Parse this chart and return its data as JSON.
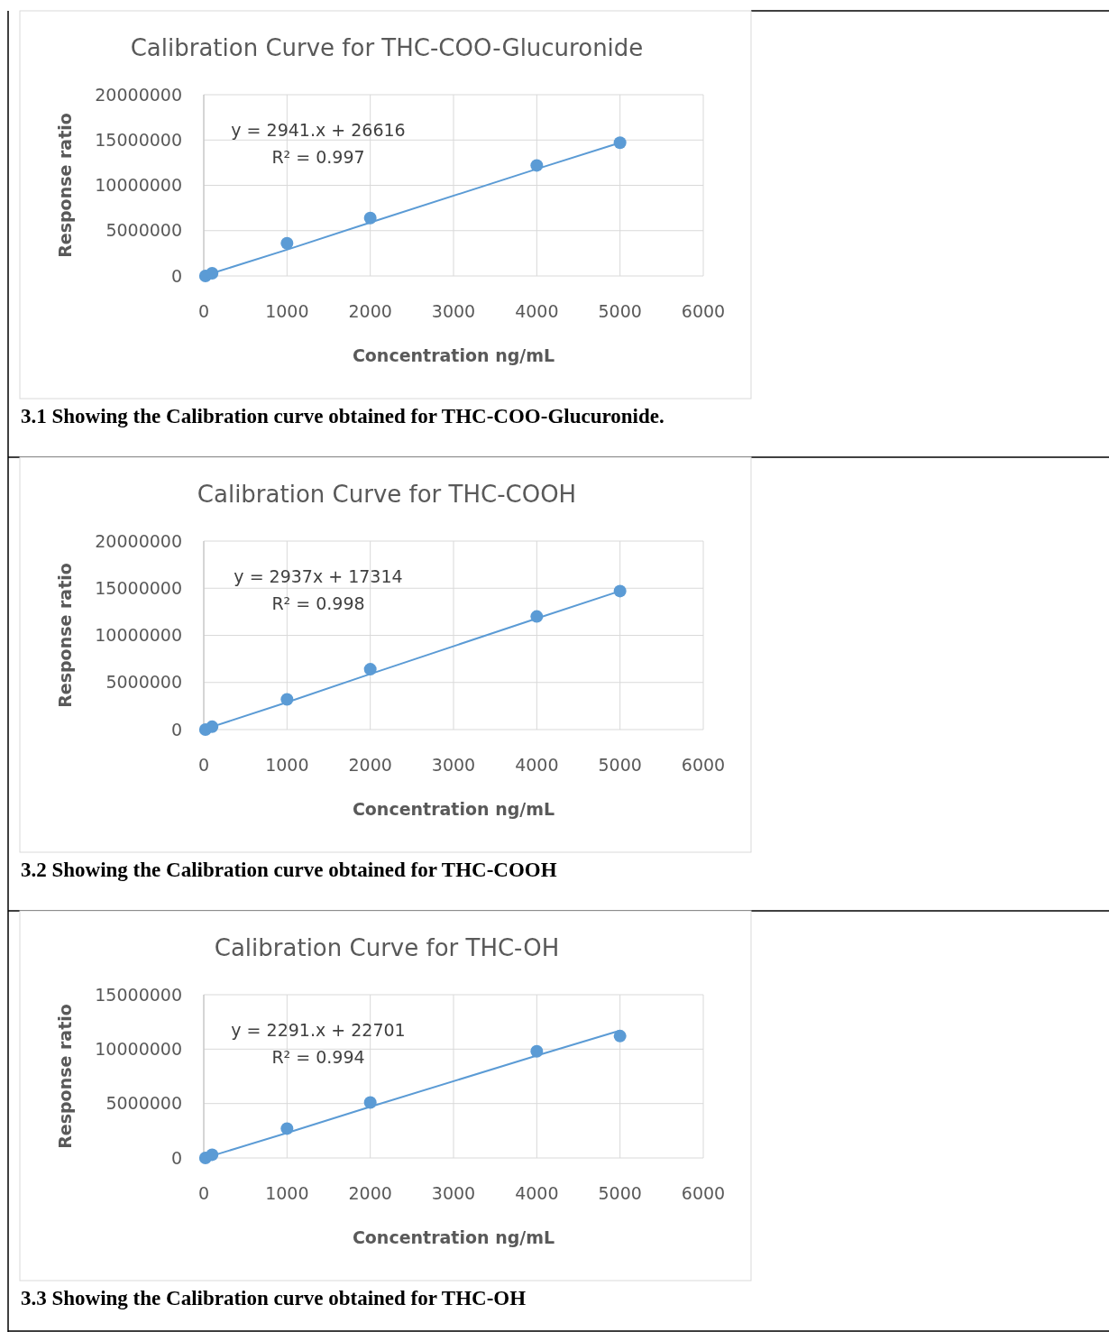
{
  "chart_data": [
    {
      "type": "scatter",
      "title": "Calibration Curve for THC-COO-Glucuronide",
      "xlabel": "Concentration ng/mL",
      "ylabel": "Response ratio",
      "x": [
        20,
        100,
        1000,
        2000,
        4000,
        5000
      ],
      "xlim": [
        0,
        6000
      ],
      "xticks": [
        0,
        1000,
        2000,
        3000,
        4000,
        5000,
        6000
      ],
      "ylim": [
        0,
        20000000
      ],
      "yticks": [
        0,
        5000000,
        10000000,
        15000000,
        20000000
      ],
      "grid": true,
      "series": [
        {
          "type": "scatter",
          "color": "#5b9bd5",
          "marker": "circle",
          "values": [
            0,
            300000,
            3600000,
            6400000,
            12200000,
            14700000
          ]
        },
        {
          "type": "line",
          "color": "#5b9bd5",
          "marker": "none",
          "values": [
            0,
            300000,
            2900000,
            5900000,
            11800000,
            14700000
          ]
        }
      ],
      "annotations": [
        "y = 2941.x + 26616",
        "R² = 0.997",
        "3.1 Showing the Calibration curve obtained for THC-COO-Glucuronide."
      ]
    },
    {
      "type": "scatter",
      "title": "Calibration Curve for THC-COOH",
      "xlabel": "Concentration ng/mL",
      "ylabel": "Response ratio",
      "x": [
        20,
        100,
        1000,
        2000,
        4000,
        5000
      ],
      "xlim": [
        0,
        6000
      ],
      "xticks": [
        0,
        1000,
        2000,
        3000,
        4000,
        5000,
        6000
      ],
      "ylim": [
        0,
        20000000
      ],
      "yticks": [
        0,
        5000000,
        10000000,
        15000000,
        20000000
      ],
      "grid": true,
      "series": [
        {
          "type": "scatter",
          "color": "#5b9bd5",
          "marker": "circle",
          "values": [
            0,
            300000,
            3200000,
            6400000,
            12000000,
            14700000
          ]
        },
        {
          "type": "line",
          "color": "#5b9bd5",
          "marker": "none",
          "values": [
            0,
            300000,
            2900000,
            5900000,
            11800000,
            14700000
          ]
        }
      ],
      "annotations": [
        "y = 2937x + 17314",
        "R² = 0.998",
        "3.2 Showing the Calibration curve obtained for THC-COOH"
      ]
    },
    {
      "type": "scatter",
      "title": "Calibration Curve for THC-OH",
      "xlabel": "Concentration ng/mL",
      "ylabel": "Response ratio",
      "x": [
        20,
        100,
        1000,
        2000,
        4000,
        5000
      ],
      "xlim": [
        0,
        6000
      ],
      "xticks": [
        0,
        1000,
        2000,
        3000,
        4000,
        5000,
        6000
      ],
      "ylim": [
        0,
        15000000
      ],
      "yticks": [
        0,
        5000000,
        10000000,
        15000000
      ],
      "grid": true,
      "series": [
        {
          "type": "scatter",
          "color": "#5b9bd5",
          "marker": "circle",
          "values": [
            0,
            300000,
            2700000,
            5100000,
            9800000,
            11200000
          ]
        },
        {
          "type": "line",
          "color": "#5b9bd5",
          "marker": "none",
          "values": [
            0,
            200000,
            2300000,
            4700000,
            9400000,
            11700000
          ]
        }
      ],
      "annotations": [
        "y = 2291.x + 22701",
        "R² = 0.994",
        "3.3 Showing the Calibration curve obtained for THC-OH"
      ]
    }
  ]
}
